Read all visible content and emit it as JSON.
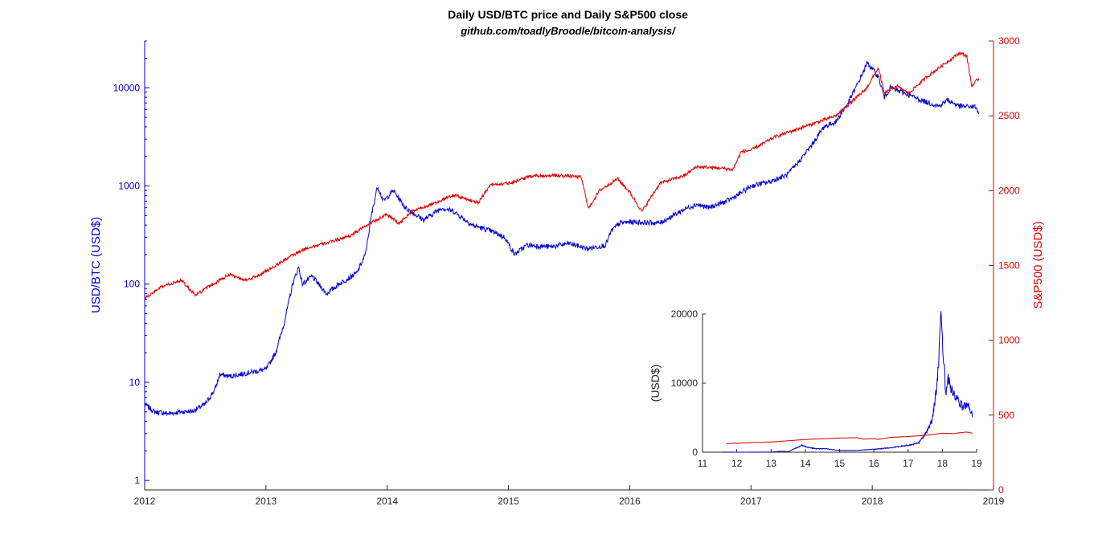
{
  "title": "Daily USD/BTC price and Daily S&P500 close",
  "subtitle": "github.com/toadlyBroodle/bitcoin-analysis/",
  "colors": {
    "btc": "#0000cc",
    "sp500": "#dd0000",
    "axis": "#262626"
  },
  "chart_data": [
    {
      "type": "line",
      "x_axis": {
        "ticks": [
          "2012",
          "2013",
          "2014",
          "2015",
          "2016",
          "2017",
          "2018",
          "2019"
        ],
        "range": [
          2012.0,
          2019.0
        ]
      },
      "y_left": {
        "label": "USD/BTC (USD$)",
        "scale": "log",
        "range": [
          0.8,
          30000
        ],
        "tick_values": [
          1,
          10,
          100,
          1000,
          10000
        ],
        "tick_labels": [
          "1",
          "10",
          "100",
          "1000",
          "10000"
        ],
        "color": "#0000cc"
      },
      "y_right": {
        "label": "S&P500 (USD$)",
        "scale": "linear",
        "range": [
          0,
          3000
        ],
        "tick_values": [
          0,
          500,
          1000,
          1500,
          2000,
          2500,
          3000
        ],
        "tick_labels": [
          "0",
          "500",
          "1000",
          "1500",
          "2000",
          "2500",
          "3000"
        ],
        "color": "#dd0000"
      },
      "grid": false,
      "series": [
        {
          "axis": "left",
          "color": "#0000cc",
          "points": [
            [
              2012.0,
              6.0
            ],
            [
              2012.08,
              5.0
            ],
            [
              2012.2,
              4.8
            ],
            [
              2012.3,
              5.0
            ],
            [
              2012.4,
              5.1
            ],
            [
              2012.5,
              6.0
            ],
            [
              2012.58,
              8.5
            ],
            [
              2012.62,
              12.0
            ],
            [
              2012.7,
              11.5
            ],
            [
              2012.85,
              12.5
            ],
            [
              2013.0,
              13.5
            ],
            [
              2013.08,
              20
            ],
            [
              2013.15,
              40
            ],
            [
              2013.22,
              100
            ],
            [
              2013.27,
              150
            ],
            [
              2013.3,
              100
            ],
            [
              2013.38,
              120
            ],
            [
              2013.5,
              80
            ],
            [
              2013.6,
              100
            ],
            [
              2013.75,
              130
            ],
            [
              2013.82,
              200
            ],
            [
              2013.87,
              500
            ],
            [
              2013.92,
              1000
            ],
            [
              2013.97,
              700
            ],
            [
              2014.05,
              900
            ],
            [
              2014.15,
              600
            ],
            [
              2014.3,
              450
            ],
            [
              2014.45,
              600
            ],
            [
              2014.55,
              550
            ],
            [
              2014.7,
              400
            ],
            [
              2014.85,
              350
            ],
            [
              2014.97,
              300
            ],
            [
              2015.05,
              200
            ],
            [
              2015.15,
              250
            ],
            [
              2015.35,
              240
            ],
            [
              2015.5,
              260
            ],
            [
              2015.65,
              230
            ],
            [
              2015.8,
              250
            ],
            [
              2015.85,
              350
            ],
            [
              2015.92,
              420
            ],
            [
              2016.0,
              430
            ],
            [
              2016.25,
              420
            ],
            [
              2016.45,
              580
            ],
            [
              2016.55,
              650
            ],
            [
              2016.65,
              600
            ],
            [
              2016.8,
              700
            ],
            [
              2016.92,
              850
            ],
            [
              2017.0,
              1000
            ],
            [
              2017.15,
              1100
            ],
            [
              2017.3,
              1300
            ],
            [
              2017.4,
              1800
            ],
            [
              2017.5,
              2600
            ],
            [
              2017.6,
              4000
            ],
            [
              2017.7,
              4500
            ],
            [
              2017.8,
              7000
            ],
            [
              2017.88,
              11000
            ],
            [
              2017.96,
              18000
            ],
            [
              2018.05,
              13000
            ],
            [
              2018.1,
              8000
            ],
            [
              2018.15,
              10000
            ],
            [
              2018.3,
              8500
            ],
            [
              2018.4,
              7500
            ],
            [
              2018.55,
              6500
            ],
            [
              2018.62,
              7500
            ],
            [
              2018.72,
              6500
            ],
            [
              2018.85,
              6400
            ],
            [
              2018.88,
              5500
            ]
          ]
        },
        {
          "axis": "right",
          "color": "#dd0000",
          "points": [
            [
              2012.0,
              1280
            ],
            [
              2012.15,
              1360
            ],
            [
              2012.3,
              1400
            ],
            [
              2012.42,
              1300
            ],
            [
              2012.55,
              1370
            ],
            [
              2012.7,
              1440
            ],
            [
              2012.85,
              1400
            ],
            [
              2013.0,
              1460
            ],
            [
              2013.2,
              1560
            ],
            [
              2013.35,
              1620
            ],
            [
              2013.5,
              1650
            ],
            [
              2013.7,
              1700
            ],
            [
              2013.85,
              1780
            ],
            [
              2014.0,
              1840
            ],
            [
              2014.1,
              1780
            ],
            [
              2014.2,
              1860
            ],
            [
              2014.4,
              1920
            ],
            [
              2014.55,
              1970
            ],
            [
              2014.75,
              1920
            ],
            [
              2014.85,
              2040
            ],
            [
              2015.0,
              2050
            ],
            [
              2015.2,
              2100
            ],
            [
              2015.45,
              2100
            ],
            [
              2015.6,
              2090
            ],
            [
              2015.66,
              1880
            ],
            [
              2015.75,
              2000
            ],
            [
              2015.9,
              2080
            ],
            [
              2016.0,
              1990
            ],
            [
              2016.1,
              1860
            ],
            [
              2016.25,
              2050
            ],
            [
              2016.45,
              2100
            ],
            [
              2016.55,
              2160
            ],
            [
              2016.75,
              2150
            ],
            [
              2016.85,
              2140
            ],
            [
              2016.92,
              2260
            ],
            [
              2017.0,
              2270
            ],
            [
              2017.2,
              2360
            ],
            [
              2017.45,
              2430
            ],
            [
              2017.7,
              2500
            ],
            [
              2017.95,
              2680
            ],
            [
              2018.05,
              2820
            ],
            [
              2018.1,
              2650
            ],
            [
              2018.2,
              2700
            ],
            [
              2018.3,
              2650
            ],
            [
              2018.45,
              2760
            ],
            [
              2018.6,
              2850
            ],
            [
              2018.72,
              2920
            ],
            [
              2018.78,
              2900
            ],
            [
              2018.82,
              2700
            ],
            [
              2018.88,
              2750
            ]
          ]
        }
      ]
    },
    {
      "type": "line",
      "inset": true,
      "x_axis": {
        "ticks": [
          "11",
          "12",
          "13",
          "14",
          "15",
          "16",
          "17",
          "18",
          "19"
        ],
        "range": [
          11,
          19
        ]
      },
      "y_axis": {
        "label": "(USD$)",
        "scale": "linear",
        "range": [
          0,
          20000
        ],
        "tick_values": [
          0,
          10000,
          20000
        ],
        "tick_labels": [
          "0",
          "10000",
          "20000"
        ]
      },
      "grid": false,
      "series": [
        {
          "color": "#0000cc",
          "points": [
            [
              11.6,
              10
            ],
            [
              12.0,
              5
            ],
            [
              12.5,
              6
            ],
            [
              13.0,
              13
            ],
            [
              13.3,
              150
            ],
            [
              13.5,
              80
            ],
            [
              13.9,
              1000
            ],
            [
              14.0,
              800
            ],
            [
              14.3,
              500
            ],
            [
              14.6,
              500
            ],
            [
              15.0,
              250
            ],
            [
              15.5,
              250
            ],
            [
              16.0,
              430
            ],
            [
              16.5,
              650
            ],
            [
              17.0,
              1000
            ],
            [
              17.3,
              1300
            ],
            [
              17.5,
              2600
            ],
            [
              17.7,
              4500
            ],
            [
              17.85,
              10000
            ],
            [
              17.96,
              19000
            ],
            [
              18.05,
              13000
            ],
            [
              18.1,
              8000
            ],
            [
              18.15,
              11000
            ],
            [
              18.3,
              8500
            ],
            [
              18.45,
              7500
            ],
            [
              18.6,
              6500
            ],
            [
              18.72,
              7000
            ],
            [
              18.88,
              5500
            ]
          ]
        },
        {
          "color": "#dd0000",
          "points": [
            [
              11.7,
              1250
            ],
            [
              12.0,
              1300
            ],
            [
              12.5,
              1400
            ],
            [
              13.0,
              1480
            ],
            [
              13.5,
              1650
            ],
            [
              14.0,
              1840
            ],
            [
              14.5,
              1950
            ],
            [
              15.0,
              2050
            ],
            [
              15.5,
              2100
            ],
            [
              15.7,
              1900
            ],
            [
              16.0,
              1990
            ],
            [
              16.1,
              1850
            ],
            [
              16.5,
              2150
            ],
            [
              17.0,
              2270
            ],
            [
              17.5,
              2430
            ],
            [
              18.0,
              2750
            ],
            [
              18.3,
              2700
            ],
            [
              18.7,
              2920
            ],
            [
              18.88,
              2750
            ]
          ]
        }
      ]
    }
  ]
}
